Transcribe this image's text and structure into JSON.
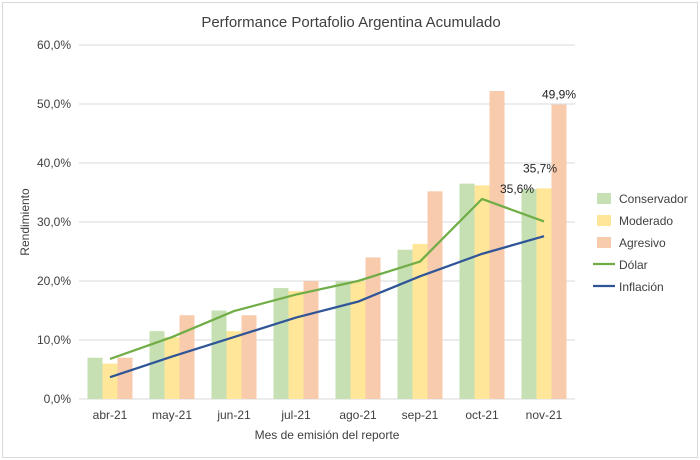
{
  "chart_data": {
    "type": "bar",
    "title": "Performance Portafolio Argentina Acumulado",
    "xlabel": "Mes de emisión del reporte",
    "ylabel": "Rendimiento",
    "ylim": [
      0,
      60
    ],
    "yticks": [
      "0,0%",
      "10,0%",
      "20,0%",
      "30,0%",
      "40,0%",
      "50,0%",
      "60,0%"
    ],
    "grid": true,
    "legend_position": "right",
    "categories": [
      "abr-21",
      "may-21",
      "jun-21",
      "jul-21",
      "ago-21",
      "sep-21",
      "oct-21",
      "nov-21"
    ],
    "series": [
      {
        "name": "Conservador",
        "kind": "bar",
        "color": "#c6e0b4",
        "values": [
          7.0,
          11.5,
          15.0,
          18.8,
          20.0,
          25.3,
          36.5,
          35.6
        ]
      },
      {
        "name": "Moderado",
        "kind": "bar",
        "color": "#ffe699",
        "values": [
          6.0,
          10.5,
          11.5,
          18.3,
          20.0,
          26.3,
          36.2,
          35.7
        ]
      },
      {
        "name": "Agresivo",
        "kind": "bar",
        "color": "#f8cbad",
        "values": [
          7.0,
          14.2,
          14.2,
          20.0,
          24.0,
          35.2,
          52.2,
          49.9
        ]
      },
      {
        "name": "Dólar",
        "kind": "line",
        "color": "#70ad47",
        "values": [
          6.8,
          10.5,
          14.9,
          17.7,
          20.0,
          23.3,
          33.9,
          30.1
        ]
      },
      {
        "name": "Inflación",
        "kind": "line",
        "color": "#2f5597",
        "values": [
          3.7,
          7.2,
          10.5,
          13.8,
          16.5,
          20.8,
          24.6,
          27.6
        ]
      }
    ],
    "data_labels": [
      {
        "text": "49,9%",
        "series": "Agresivo",
        "category": "nov-21"
      },
      {
        "text": "35,7%",
        "series": "Moderado",
        "category": "nov-21"
      },
      {
        "text": "35,6%",
        "series": "Conservador",
        "category": "nov-21"
      }
    ]
  }
}
